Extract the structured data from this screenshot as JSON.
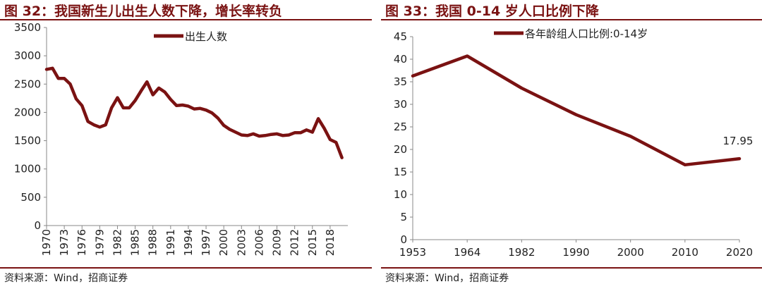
{
  "colors": {
    "accent": "#7a1212",
    "series": "#7a1212"
  },
  "left": {
    "title": "图 32：我国新生儿出生人数下降，增长率转负",
    "source": "资料来源：Wind，招商证券"
  },
  "right": {
    "title": "图 33：我国 0-14 岁人口比例下降",
    "source": "资料来源：Wind，招商证券"
  },
  "chart_data": [
    {
      "type": "line",
      "title": "图 32：我国新生儿出生人数下降，增长率转负",
      "ylim": [
        0,
        3500
      ],
      "yticks": [
        0,
        500,
        1000,
        1500,
        2000,
        2500,
        3000,
        3500
      ],
      "xticks": [
        "1970",
        "1973",
        "1976",
        "1979",
        "1982",
        "1985",
        "1988",
        "1991",
        "1994",
        "1997",
        "2000",
        "2003",
        "2006",
        "2009",
        "2012",
        "2015",
        "2018"
      ],
      "x_range": [
        1970,
        2021
      ],
      "legend_position": "top-center",
      "grid": false,
      "series": [
        {
          "name": "出生人数",
          "x": [
            1970,
            1971,
            1972,
            1973,
            1974,
            1975,
            1976,
            1977,
            1978,
            1979,
            1980,
            1981,
            1982,
            1983,
            1984,
            1985,
            1986,
            1987,
            1988,
            1989,
            1990,
            1991,
            1992,
            1993,
            1994,
            1995,
            1996,
            1997,
            1998,
            1999,
            2000,
            2001,
            2002,
            2003,
            2004,
            2005,
            2006,
            2007,
            2008,
            2009,
            2010,
            2011,
            2012,
            2013,
            2014,
            2015,
            2016,
            2017,
            2018,
            2019,
            2020
          ],
          "values": [
            2760,
            2780,
            2600,
            2600,
            2500,
            2240,
            2120,
            1840,
            1780,
            1740,
            1780,
            2080,
            2260,
            2080,
            2080,
            2210,
            2380,
            2540,
            2310,
            2430,
            2360,
            2230,
            2120,
            2130,
            2110,
            2060,
            2070,
            2040,
            1990,
            1900,
            1770,
            1700,
            1650,
            1600,
            1590,
            1620,
            1580,
            1590,
            1610,
            1620,
            1590,
            1600,
            1640,
            1640,
            1690,
            1650,
            1890,
            1720,
            1520,
            1470,
            1200
          ]
        }
      ]
    },
    {
      "type": "line",
      "title": "图 33：我国 0-14 岁人口比例下降",
      "ylim": [
        0,
        45
      ],
      "yticks": [
        0,
        5,
        10,
        15,
        20,
        25,
        30,
        35,
        40,
        45
      ],
      "categories": [
        "1953",
        "1964",
        "1982",
        "1990",
        "2000",
        "2010",
        "2020"
      ],
      "legend_position": "top-center",
      "grid": false,
      "annotations": [
        {
          "category": "2020",
          "text": "17.95"
        }
      ],
      "series": [
        {
          "name": "各年龄组人口比例:0-14岁",
          "values": [
            36.3,
            40.7,
            33.6,
            27.7,
            22.9,
            16.6,
            17.95
          ]
        }
      ]
    }
  ]
}
